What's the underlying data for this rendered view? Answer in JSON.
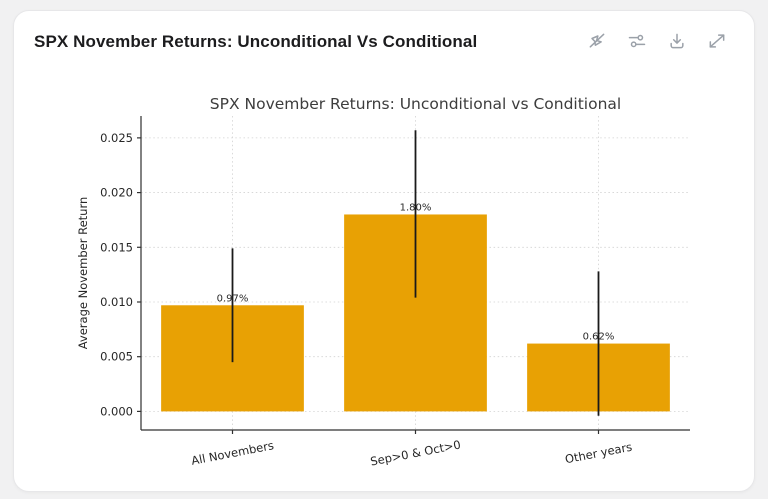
{
  "card": {
    "title": "SPX November Returns: Unconditional Vs Conditional",
    "toolbar": {
      "icons": [
        "interactivity-off",
        "chart-settings",
        "download",
        "expand"
      ],
      "icon_color": "#9ba1a9"
    }
  },
  "chart_data": {
    "type": "bar",
    "title": "SPX November Returns: Unconditional vs Conditional",
    "xlabel": "",
    "ylabel": "Average November Return",
    "categories": [
      "All Novembers",
      "Sep>0 & Oct>0",
      "Other years"
    ],
    "values": [
      0.0097,
      0.018,
      0.0062
    ],
    "value_labels": [
      "0.97%",
      "1.80%",
      "0.62%"
    ],
    "error_low": [
      0.0045,
      0.0104,
      -0.0004
    ],
    "error_high": [
      0.0149,
      0.0257,
      0.0128
    ],
    "yticks": [
      0.0,
      0.005,
      0.01,
      0.015,
      0.02,
      0.025
    ],
    "ytick_labels": [
      "0.000",
      "0.005",
      "0.010",
      "0.015",
      "0.020",
      "0.025"
    ],
    "ylim": [
      -0.0017,
      0.027
    ],
    "bar_color": "#E8A104",
    "error_color": "#1a1a1a",
    "grid": true,
    "grid_color": "#d2d2d2",
    "spine_color": "#303030",
    "legend_position": "none",
    "xtick_rotation_deg": 11
  }
}
